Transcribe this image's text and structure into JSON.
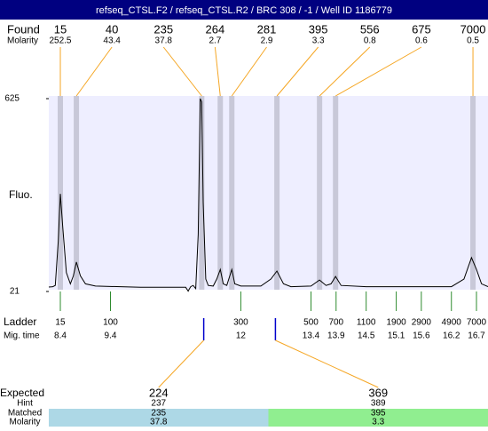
{
  "header": {
    "title": "refseq_CTSL.F2 / refseq_CTSL.R2 / BRC 308 / -1 / Well ID 1186779"
  },
  "chart_data": {
    "type": "electropherogram",
    "y_label": "Fluo.",
    "ylim": [
      21,
      625
    ],
    "yticks": [
      21,
      625
    ],
    "xlim": [
      8.17,
      16.93
    ],
    "found": {
      "label": "Found",
      "molarity_label": "Molarity",
      "sizes": [
        15,
        40,
        235,
        264,
        281,
        395,
        556,
        675,
        7000
      ],
      "molarity": [
        252.5,
        43.4,
        37.8,
        2.7,
        2.9,
        3.3,
        0.8,
        0.6,
        0.5
      ],
      "times": [
        8.4,
        8.72,
        11.22,
        11.59,
        11.82,
        12.72,
        13.57,
        13.89,
        16.63
      ]
    },
    "ladder": {
      "label": "Ladder",
      "time_label": "Mig. time",
      "sizes": [
        15,
        100,
        300,
        500,
        700,
        1100,
        1900,
        2900,
        4900,
        7000
      ],
      "times": [
        8.4,
        9.4,
        12,
        13.4,
        13.9,
        14.5,
        15.1,
        15.6,
        16.2,
        16.7
      ]
    },
    "trace": {
      "color": "#000000",
      "x": [
        8.17,
        8.25,
        8.3,
        8.36,
        8.4,
        8.45,
        8.52,
        8.6,
        8.66,
        8.72,
        8.8,
        8.9,
        9.1,
        10,
        10.9,
        10.95,
        10.97,
        11.0,
        11.05,
        11.1,
        11.15,
        11.19,
        11.22,
        11.25,
        11.3,
        11.35,
        11.45,
        11.52,
        11.59,
        11.65,
        11.72,
        11.78,
        11.82,
        11.88,
        12.0,
        12.4,
        12.6,
        12.72,
        12.85,
        13.0,
        13.4,
        13.57,
        13.7,
        13.8,
        13.89,
        14.0,
        14.5,
        16.2,
        16.45,
        16.6,
        16.7,
        16.8,
        16.93
      ],
      "values": [
        35,
        36,
        40,
        180,
        327,
        220,
        80,
        45,
        70,
        113,
        70,
        45,
        38,
        34,
        34,
        22,
        28,
        36,
        40,
        30,
        200,
        625,
        615,
        300,
        60,
        40,
        38,
        60,
        90,
        45,
        40,
        70,
        90,
        45,
        38,
        38,
        60,
        85,
        45,
        36,
        38,
        57,
        40,
        45,
        68,
        40,
        36,
        36,
        60,
        127,
        90,
        45,
        36
      ]
    },
    "expected": {
      "label": "Expected",
      "hint_label": "Hint",
      "matched_label": "Matched",
      "molarity_label": "Molarity",
      "sizes": [
        224,
        369
      ],
      "hint": [
        237,
        389
      ],
      "matched": [
        235,
        395
      ],
      "molarity": [
        37.8,
        3.3
      ],
      "times": [
        11.26,
        12.69
      ],
      "colors": [
        "#add8e6",
        "#90ee90"
      ]
    }
  }
}
